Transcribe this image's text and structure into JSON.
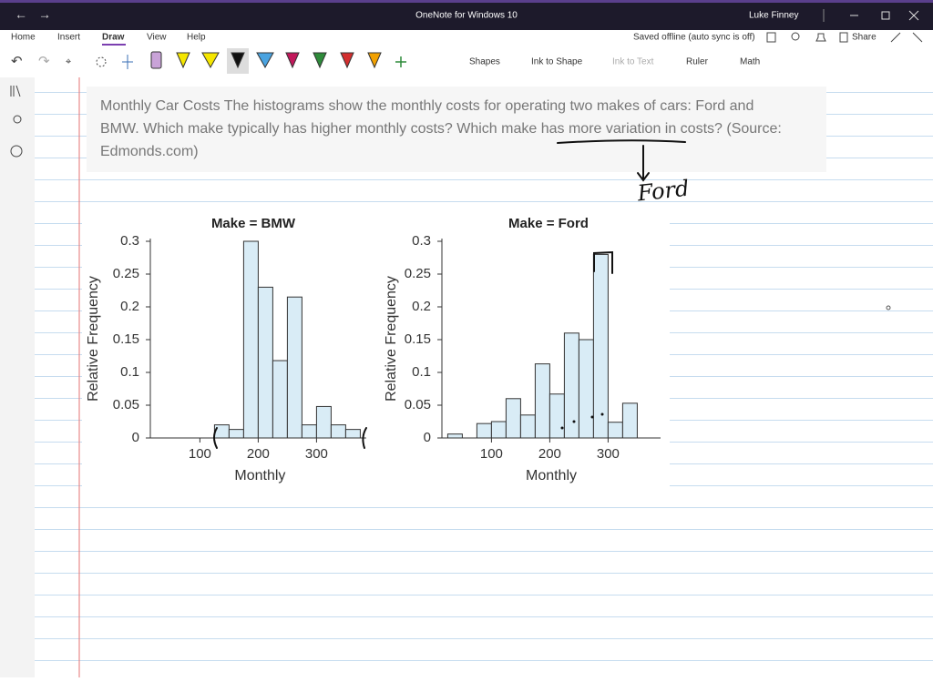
{
  "window": {
    "title": "OneNote for Windows 10",
    "user": "Luke Finney"
  },
  "ribbon": {
    "tabs": [
      "Home",
      "Insert",
      "Draw",
      "View",
      "Help"
    ],
    "status": "Saved offline (auto sync is off)",
    "share": "Share",
    "tools": [
      "Shapes",
      "Ink to Shape",
      "Ink to Text",
      "Ruler",
      "Math"
    ]
  },
  "note": {
    "lines": [
      "Monthly Car Costs The histograms show the monthly costs for operating two makes of cars: Ford and",
      "BMW. Which make typically has higher monthly costs? Which make has more variation in costs? (Source:",
      "Edmonds.com)"
    ]
  },
  "annotations": {
    "handwriting": "Ford"
  },
  "chart_data": [
    {
      "type": "histogram",
      "title": "Make = BMW",
      "x_label": "Monthly",
      "y_label": "Relative Frequency",
      "bins": [
        125,
        150,
        175,
        200,
        225,
        250,
        275,
        300,
        325,
        350,
        375
      ],
      "values": [
        0.02,
        0.013,
        0.3,
        0.23,
        0.118,
        0.215,
        0.02,
        0.048,
        0.02,
        0.013
      ],
      "color": "#d9ecf6",
      "xlim": [
        15,
        385
      ],
      "ylim": [
        0,
        0.3
      ],
      "xticks": [
        100,
        200,
        300
      ],
      "yticks": [
        0,
        0.05,
        0.1,
        0.15,
        0.2,
        0.25,
        0.3
      ]
    },
    {
      "type": "histogram",
      "title": "Make = Ford",
      "x_label": "Monthly",
      "y_label": "Relative Frequency",
      "bins": [
        25,
        50,
        75,
        100,
        125,
        150,
        175,
        200,
        225,
        250,
        275,
        300,
        325,
        350
      ],
      "values": [
        0.006,
        0,
        0.022,
        0.025,
        0.06,
        0.035,
        0.113,
        0.067,
        0.16,
        0.15,
        0.28,
        0.024,
        0.053
      ],
      "color": "#d9ecf6",
      "xlim": [
        15,
        390
      ],
      "ylim": [
        0,
        0.3
      ],
      "xticks": [
        100,
        200,
        300
      ],
      "yticks": [
        0,
        0.05,
        0.1,
        0.15,
        0.2,
        0.25,
        0.3
      ]
    }
  ]
}
